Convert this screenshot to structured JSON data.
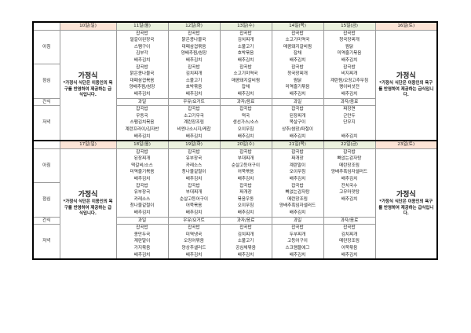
{
  "labels": {
    "breakfast": "아침",
    "lunch": "점심",
    "snack": "간식",
    "dinner": "저녁"
  },
  "home_meal": {
    "title": "가정식",
    "note": "*가정식 식단은 이용인의 욕구를 반영하여 제공하는 급식입니다."
  },
  "colors": {
    "weekday_header": "#ebf1de",
    "weekend_header": "#fce4d6"
  },
  "weeks": [
    {
      "sunday": "10일(일)",
      "saturday": "16일(토)",
      "days": [
        {
          "date": "11일(월)",
          "breakfast": [
            "잡곡밥",
            "얼갈이된장국",
            "스팸구이",
            "김부각",
            "배추김치"
          ],
          "lunch": [
            "잡곡밥",
            "맑은콩나물국",
            "대패삼겹볶음",
            "양배추찜/쌈장",
            "배추김치"
          ],
          "snack": "과일",
          "dinner": [
            "잡곡밥",
            "우동국",
            "스팸김치볶음",
            "계란프라이/김자반",
            "배추김치"
          ]
        },
        {
          "date": "12일(화)",
          "breakfast": [
            "잡곡밥",
            "맑은콩나물국",
            "대패삼겹볶음",
            "양배추찜/쌈장",
            "배추김치"
          ],
          "lunch": [
            "잡곡밥",
            "김치찌개",
            "소불고기",
            "호박볶음",
            "배추김치"
          ],
          "snack": "우유/요거트",
          "dinner": [
            "잡곡밥",
            "소고기무국",
            "계란장조림",
            "비엔나소시지/케찹",
            "배추김치"
          ]
        },
        {
          "date": "13일(수)",
          "breakfast": [
            "잡곡밥",
            "김치찌개",
            "소불고기",
            "호박볶음",
            "배추김치"
          ],
          "lunch": [
            "잡곡밥",
            "소고기미역국",
            "매콤돼지갈비찜",
            "잡채",
            "배추김치"
          ],
          "snack": "과자/음료",
          "dinner": [
            "잡곡밥",
            "떡국",
            "생선가스/소스",
            "오이무침",
            "배추김치"
          ]
        },
        {
          "date": "14일(목)",
          "breakfast": [
            "잡곡밥",
            "소고기미역국",
            "매콤돼지갈비찜",
            "잡채",
            "배추김치"
          ],
          "lunch": [
            "잡곡밥",
            "청국장찌개",
            "찜닭",
            "미역줄기볶음",
            "배추김치"
          ],
          "snack": "과일",
          "dinner": [
            "잡곡밥",
            "된장찌개",
            "목살구이",
            "상추/쌈장/파절이",
            "배추김치"
          ]
        },
        {
          "date": "15일(금)",
          "breakfast": [
            "잡곡밥",
            "청국장찌개",
            "찜닭",
            "미역줄기볶음",
            "배추김치"
          ],
          "lunch": [
            "잡곡밥",
            "비지찌개",
            "계란찜/오징고추무침",
            "팽이버섯전",
            "배추김치"
          ],
          "snack": "과자/음료",
          "dinner": [
            "짜장면",
            "군만두",
            "단무지",
            "",
            "배추김치"
          ]
        }
      ]
    },
    {
      "sunday": "17일(일)",
      "saturday": "23일(토)",
      "days": [
        {
          "date": "18일(월)",
          "breakfast": [
            "잡곡밥",
            "된장찌개",
            "떡갈비/소스",
            "미역줄기볶음",
            "배추김치"
          ],
          "lunch": [
            "잡곡밥",
            "유부장국",
            "카레소스",
            "청나물겉절이",
            "배추김치"
          ],
          "snack": "과일",
          "dinner": [
            "잡곡밥",
            "콩만두국",
            "계란말이",
            "가지볶음",
            "배추김치"
          ]
        },
        {
          "date": "19일(화)",
          "breakfast": [
            "잡곡밥",
            "유부장국",
            "카레소스",
            "청나물겉절이",
            "배추김치"
          ],
          "lunch": [
            "잡곡밥",
            "부대찌개",
            "순살고등어구이",
            "어묵볶음",
            "배추김치"
          ],
          "snack": "우유/요거트",
          "dinner": [
            "잡곡밥",
            "미역냉국",
            "오징어볶음",
            "양상추샐러드",
            "배추김치"
          ]
        },
        {
          "date": "20일(수)",
          "breakfast": [
            "잡곡밥",
            "부대찌개",
            "순살고등어구이",
            "어묵볶음",
            "배추김치"
          ],
          "lunch": [
            "잡곡밥",
            "짜개장",
            "볶음우동",
            "오이무침",
            "배추김치"
          ],
          "snack": "과자/음료",
          "dinner": [
            "잡곡밥",
            "김치찌개",
            "소불고기",
            "공심채볶음",
            "배추김치"
          ]
        },
        {
          "date": "21일(목)",
          "breakfast": [
            "잡곡밥",
            "짜개장",
            "계란말이",
            "오이무침",
            "배추김치"
          ],
          "lunch": [
            "잡곡밥",
            "뼈없는감자탕",
            "메란장조림",
            "양배추흑임자샐러드",
            "배추김치"
          ],
          "snack": "과일",
          "dinner": [
            "잡곡밥",
            "두부찌개",
            "고등어구이",
            "스크램블에그",
            "배추김치"
          ]
        },
        {
          "date": "22일(금)",
          "breakfast": [
            "잡곡밥",
            "뼈없는감자탕",
            "메란장조림",
            "양배추흑임자샐러드",
            "배추김치"
          ],
          "lunch": [
            "잔치국수",
            "고무마맛탕",
            "배추김치",
            "",
            ""
          ],
          "snack": "과자/음료",
          "dinner": [
            "잡곡밥",
            "김치찌개",
            "메란장조림",
            "어묵볶음",
            "배추김치"
          ]
        }
      ]
    }
  ]
}
